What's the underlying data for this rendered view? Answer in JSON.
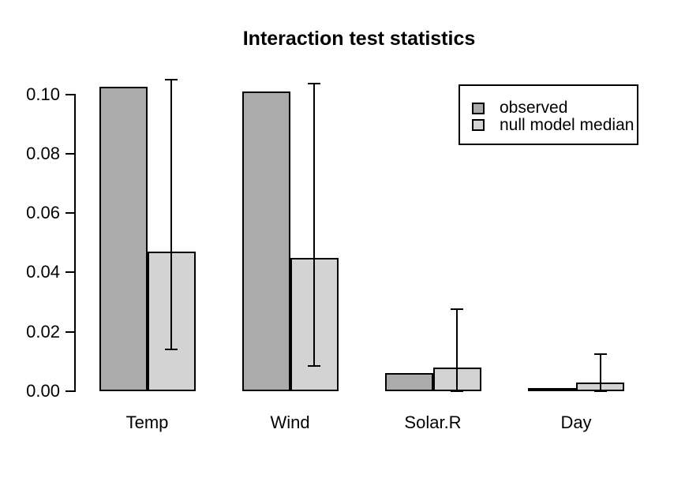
{
  "chart_data": {
    "type": "bar",
    "title": "Interaction test statistics",
    "categories": [
      "Temp",
      "Wind",
      "Solar.R",
      "Day"
    ],
    "series": [
      {
        "name": "observed",
        "color": "#ababab",
        "values": [
          0.1025,
          0.101,
          0.006,
          0.0005
        ]
      },
      {
        "name": "null model median",
        "color": "#d3d3d3",
        "values": [
          0.047,
          0.045,
          0.008,
          0.003
        ]
      }
    ],
    "error_bars": {
      "on_series": "null model median",
      "upper": [
        0.105,
        0.1035,
        0.0275,
        0.0125
      ],
      "lower": [
        0.014,
        0.0085,
        0.0,
        0.0
      ]
    },
    "ylim": [
      0,
      0.1
    ],
    "yticks": [
      0,
      0.02,
      0.04,
      0.06,
      0.08,
      0.1
    ],
    "ytick_labels": [
      "0.00",
      "0.02",
      "0.04",
      "0.06",
      "0.08",
      "0.10"
    ],
    "xlabel": "",
    "ylabel": "",
    "grid": false,
    "background": "#ffffff",
    "bar_border_color": "#000000",
    "legend": {
      "position": "top-right",
      "entries": [
        {
          "label": "observed",
          "color": "#ababab"
        },
        {
          "label": "null model median",
          "color": "#d3d3d3"
        }
      ]
    }
  }
}
